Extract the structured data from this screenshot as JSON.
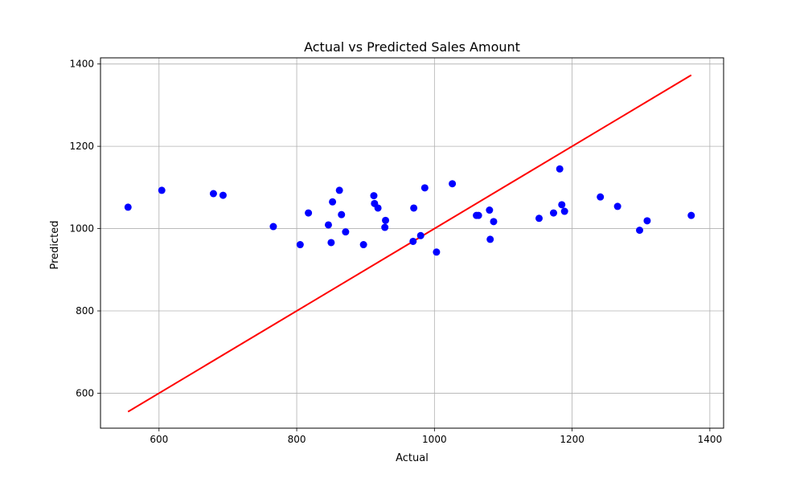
{
  "chart_data": {
    "type": "scatter",
    "title": "Actual vs Predicted Sales Amount",
    "xlabel": "Actual",
    "ylabel": "Predicted",
    "xlim": [
      515,
      1420
    ],
    "ylim": [
      515,
      1415
    ],
    "xticks": [
      600,
      800,
      1000,
      1200,
      1400
    ],
    "yticks": [
      600,
      800,
      1000,
      1200,
      1400
    ],
    "grid": true,
    "point_color": "#0000ff",
    "line_color": "#ff0000",
    "points": [
      [
        555,
        1052
      ],
      [
        604,
        1093
      ],
      [
        679,
        1085
      ],
      [
        693,
        1081
      ],
      [
        766,
        1005
      ],
      [
        805,
        961
      ],
      [
        817,
        1038
      ],
      [
        846,
        1009
      ],
      [
        850,
        966
      ],
      [
        852,
        1065
      ],
      [
        862,
        1093
      ],
      [
        865,
        1034
      ],
      [
        871,
        992
      ],
      [
        897,
        961
      ],
      [
        912,
        1080
      ],
      [
        913,
        1061
      ],
      [
        918,
        1050
      ],
      [
        928,
        1003
      ],
      [
        929,
        1020
      ],
      [
        969,
        969
      ],
      [
        970,
        1050
      ],
      [
        980,
        983
      ],
      [
        986,
        1099
      ],
      [
        1003,
        943
      ],
      [
        1026,
        1109
      ],
      [
        1061,
        1032
      ],
      [
        1064,
        1032
      ],
      [
        1080,
        1045
      ],
      [
        1081,
        974
      ],
      [
        1086,
        1017
      ],
      [
        1152,
        1025
      ],
      [
        1173,
        1038
      ],
      [
        1182,
        1145
      ],
      [
        1185,
        1058
      ],
      [
        1189,
        1042
      ],
      [
        1241,
        1077
      ],
      [
        1266,
        1054
      ],
      [
        1298,
        996
      ],
      [
        1309,
        1019
      ],
      [
        1373,
        1032
      ]
    ],
    "reference_line": {
      "x": [
        555,
        1373
      ],
      "y": [
        555,
        1373
      ]
    }
  }
}
